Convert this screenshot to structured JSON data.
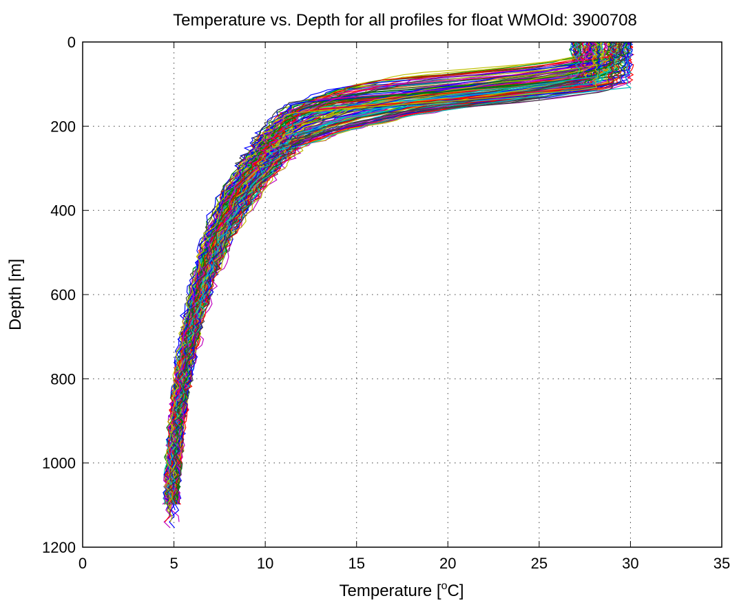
{
  "chart_data": {
    "type": "line",
    "title": "Temperature vs. Depth for all profiles for float WMOId: 3900708",
    "xlabel": {
      "main": "Temperature [",
      "sup": "o",
      "tail": "C]"
    },
    "ylabel": "Depth [m]",
    "xlim": [
      0,
      35
    ],
    "ylim": [
      0,
      1200
    ],
    "y_reversed": true,
    "grid": true,
    "x_ticks": [
      "0",
      "5",
      "10",
      "15",
      "20",
      "25",
      "30",
      "35"
    ],
    "y_ticks": [
      "0",
      "200",
      "400",
      "600",
      "800",
      "1000",
      "1200"
    ],
    "series_colors": [
      "#0000ff",
      "#008000",
      "#ff0000",
      "#00bfbf",
      "#bf00bf",
      "#bfbf00",
      "#404040"
    ],
    "series_count": 140,
    "representative_profile": {
      "depth": [
        0,
        50,
        80,
        120,
        160,
        200,
        260,
        320,
        400,
        500,
        600,
        700,
        800,
        900,
        1000,
        1100
      ],
      "temperature": [
        28.0,
        27.6,
        24.0,
        18.0,
        14.0,
        11.5,
        10.2,
        9.2,
        8.0,
        7.0,
        6.3,
        5.8,
        5.4,
        5.1,
        4.9,
        4.8
      ]
    }
  }
}
